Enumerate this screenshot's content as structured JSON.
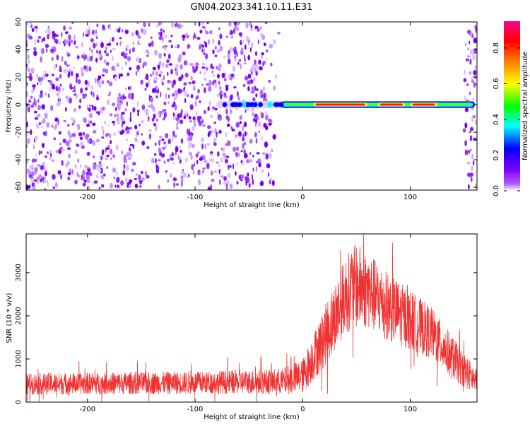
{
  "title": "GN04.2023.341.10.11.E31",
  "chart_data": [
    {
      "type": "heatmap",
      "xlabel": "Height of straight line (km)",
      "ylabel": "Frequency (Hz)",
      "xlim": [
        -257,
        162
      ],
      "ylim": [
        -62,
        60
      ],
      "xticks": [
        -200,
        -100,
        0,
        100
      ],
      "yticks": [
        -60,
        -40,
        -20,
        0,
        20,
        40,
        60
      ],
      "colorbar": {
        "label": "Normalized spectral amplitude",
        "range": [
          0,
          0.95
        ],
        "ticks": [
          "0.0",
          "0.2",
          "0.4",
          "0.6",
          "0.8"
        ],
        "colors": [
          "#ffffff",
          "#8000ff",
          "#0000ff",
          "#00ffff",
          "#00ff00",
          "#ffff00",
          "#ff8000",
          "#ff0000",
          "#ff00a0"
        ]
      },
      "features": {
        "noise_regions_km": [
          [
            -257,
            -20
          ],
          [
            150,
            162
          ]
        ],
        "signal_band_km": [
          -80,
          160
        ],
        "signal_band_hz": [
          -4,
          4
        ],
        "peak_amplitude_km": [
          [
            10,
            60
          ],
          [
            70,
            95
          ],
          [
            100,
            125
          ]
        ]
      }
    },
    {
      "type": "line",
      "xlabel": "Height of straight line (km)",
      "ylabel": "SNR (10 * v/v)",
      "xlim": [
        -257,
        162
      ],
      "ylim": [
        0,
        3900
      ],
      "xticks": [
        -200,
        -100,
        0,
        100
      ],
      "yticks": [
        0,
        1000,
        2000,
        3000
      ],
      "color": "#f03232",
      "envelope": {
        "x": [
          -257,
          -200,
          -150,
          -100,
          -50,
          -20,
          0,
          20,
          40,
          50,
          60,
          80,
          100,
          120,
          140,
          162
        ],
        "center": [
          420,
          430,
          440,
          450,
          470,
          480,
          600,
          1500,
          2500,
          2700,
          2600,
          2200,
          1900,
          1600,
          1000,
          450
        ],
        "amplitude": [
          250,
          250,
          260,
          260,
          280,
          300,
          400,
          700,
          900,
          1000,
          900,
          800,
          700,
          600,
          500,
          300
        ]
      }
    }
  ]
}
